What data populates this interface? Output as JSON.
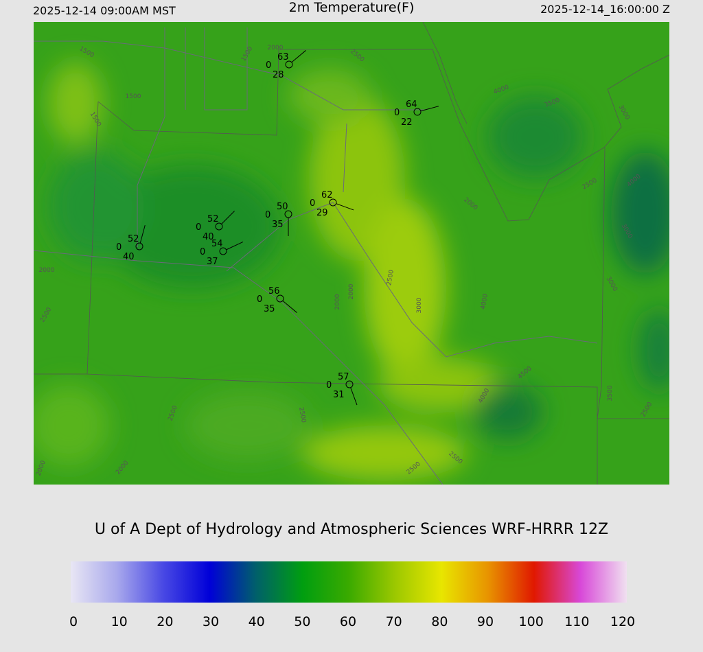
{
  "header": {
    "valid_local": "2025-12-14 09:00AM MST",
    "title": "2m Temperature(F)",
    "valid_utc": "2025-12-14_16:00:00 Z"
  },
  "credit": "U of A Dept of Hydrology and Atmospheric Sciences WRF-HRRR 12Z",
  "colorbar": {
    "ticks": [
      0,
      10,
      20,
      30,
      40,
      50,
      60,
      70,
      80,
      90,
      100,
      110,
      120
    ],
    "colors": [
      "#e8e6f4",
      "#a8a8ec",
      "#4848e4",
      "#0000d8",
      "#00606a",
      "#009e10",
      "#3aaa00",
      "#9cc800",
      "#e8e600",
      "#e89400",
      "#e01800",
      "#d848d8",
      "#f0e0f0"
    ]
  },
  "stations": [
    {
      "temp": "63",
      "mark": "0",
      "dew": "28"
    },
    {
      "temp": "64",
      "mark": "0",
      "dew": "22"
    },
    {
      "temp": "62",
      "mark": "0",
      "dew": "29"
    },
    {
      "temp": "50",
      "mark": "0",
      "dew": "35"
    },
    {
      "temp": "52",
      "mark": "0",
      "dew": "40"
    },
    {
      "temp": "54",
      "mark": "0",
      "dew": "37"
    },
    {
      "temp": "52",
      "mark": "0",
      "dew": "40"
    },
    {
      "temp": "56",
      "mark": "0",
      "dew": "35"
    },
    {
      "temp": "57",
      "mark": "0",
      "dew": "31"
    }
  ],
  "contour_labels": [
    "1500",
    "2000",
    "1500",
    "1500",
    "1500",
    "2500",
    "3500",
    "3000",
    "4000",
    "2000",
    "2500",
    "4000",
    "3000",
    "2500",
    "3000",
    "2000",
    "2000",
    "4000",
    "3000",
    "2000",
    "2500",
    "4500",
    "3500",
    "2500",
    "4000",
    "2500",
    "2500",
    "2500",
    "2500",
    "2000",
    "2000"
  ]
}
